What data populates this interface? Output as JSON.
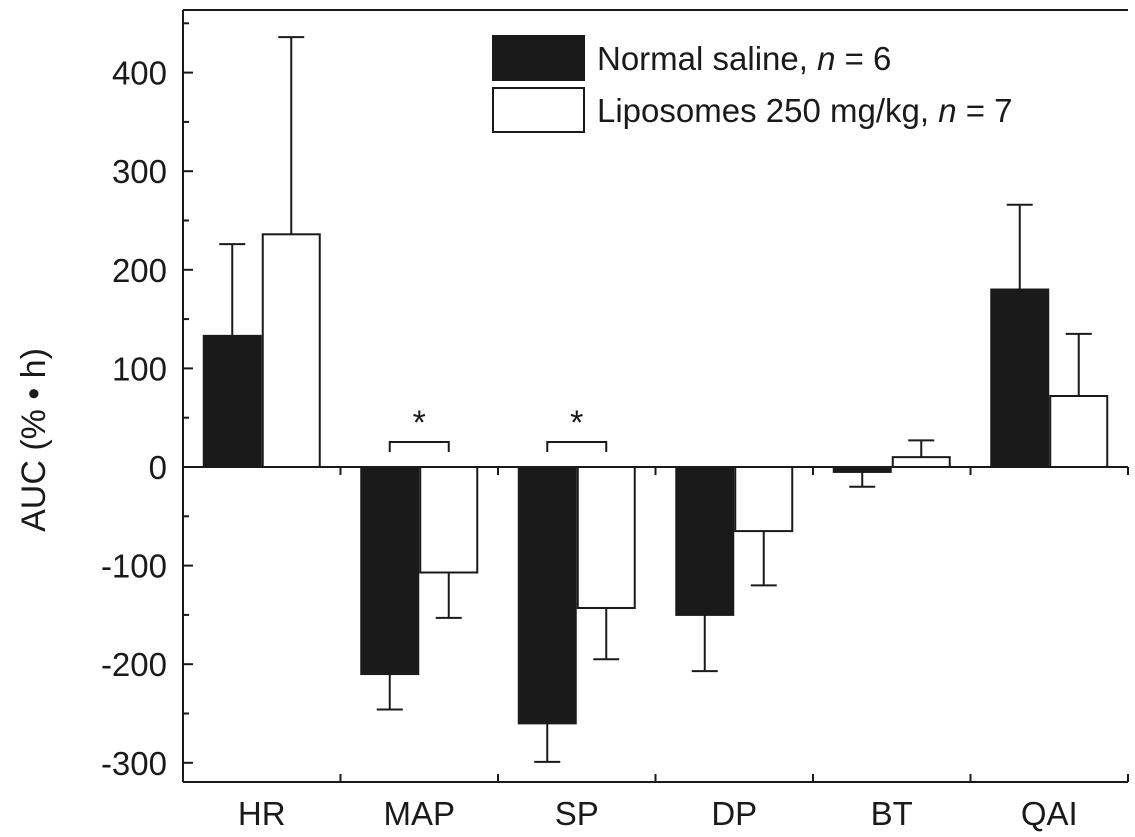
{
  "chart_data": {
    "type": "bar",
    "ylabel": "AUC (% • h)",
    "ylim": [
      -320,
      460
    ],
    "yticks": [
      -300,
      -200,
      -100,
      0,
      100,
      200,
      300,
      400
    ],
    "ytick_labels": [
      "-300",
      "-200",
      "-100",
      "0",
      "100",
      "200",
      "300",
      "400"
    ],
    "categories": [
      "HR",
      "MAP",
      "SP",
      "DP",
      "BT",
      "QAI"
    ],
    "grid": false,
    "legend_position": "top-right",
    "series": [
      {
        "name": "Normal saline, n = 6",
        "name_parts": [
          "Normal saline, ",
          "n",
          " = 6"
        ],
        "fill": "#1a1a1a",
        "values": [
          133,
          -210,
          -260,
          -150,
          -5,
          180
        ],
        "errors": [
          93,
          36,
          39,
          57,
          15,
          86
        ]
      },
      {
        "name": "Liposomes 250 mg/kg, n = 7",
        "name_parts": [
          "Liposomes 250 mg/kg, ",
          "n",
          " = 7"
        ],
        "fill": "#ffffff",
        "values": [
          236,
          -107,
          -143,
          -65,
          10,
          72
        ],
        "errors": [
          200,
          46,
          52,
          55,
          17,
          63
        ]
      }
    ],
    "annotations": [
      {
        "text": "*",
        "category": "MAP"
      },
      {
        "text": "*",
        "category": "SP"
      }
    ]
  }
}
